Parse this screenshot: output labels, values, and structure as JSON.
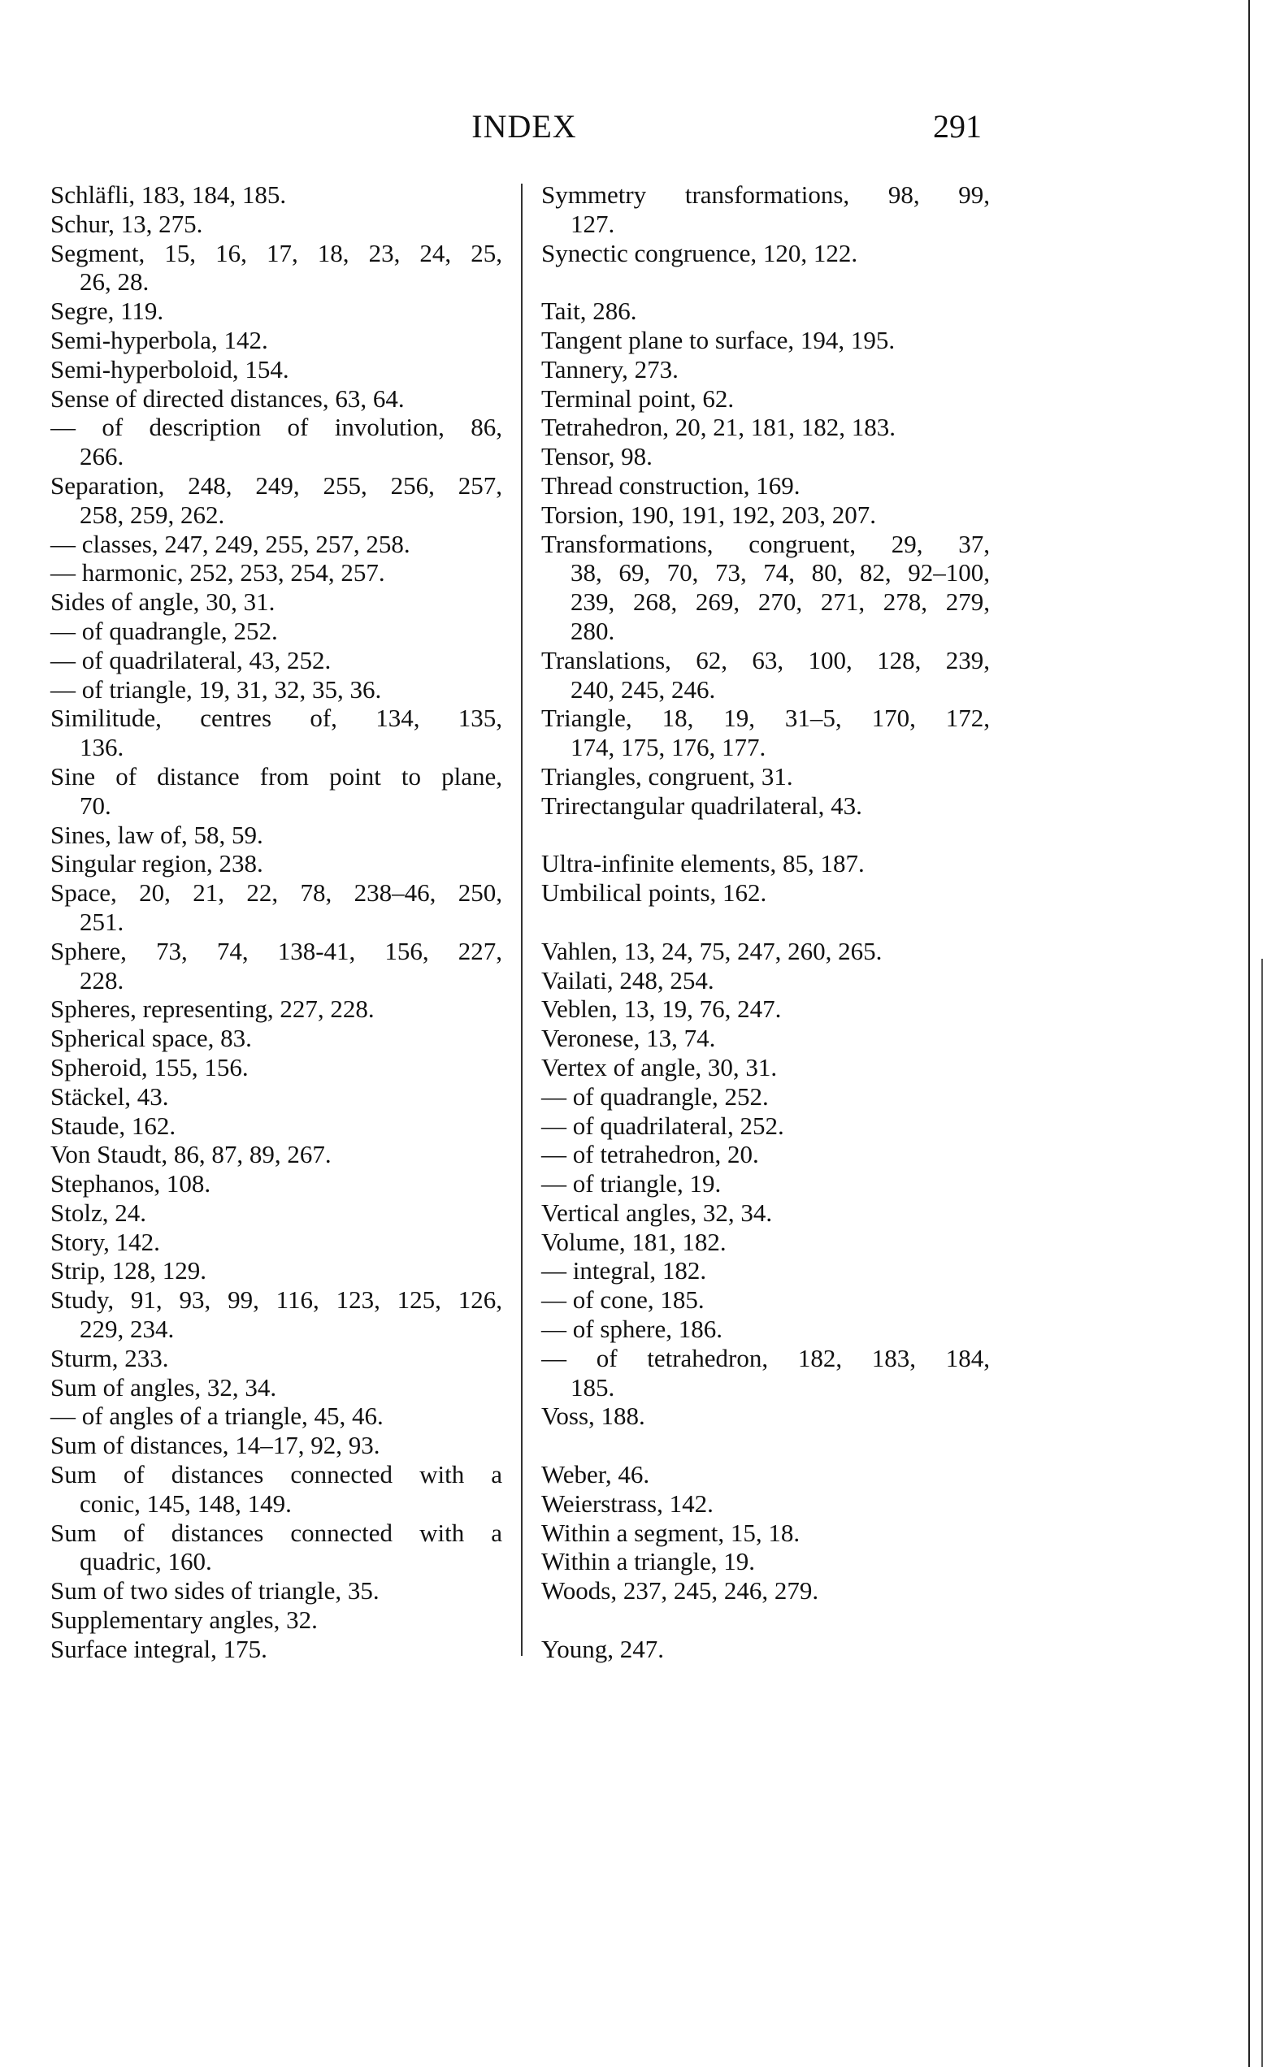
{
  "header": {
    "title": "INDEX",
    "page_number": "291"
  },
  "left_column": [
    {
      "text": "Schläfli, 183, 184, 185."
    },
    {
      "text": "Schur, 13, 275."
    },
    {
      "text": "Segment, 15, 16, 17, 18, 23, 24, 25,",
      "cont": "26, 28."
    },
    {
      "text": "Segre, 119."
    },
    {
      "text": "Semi-hyperbola, 142."
    },
    {
      "text": "Semi-hyperboloid, 154."
    },
    {
      "text": "Sense of directed distances, 63, 64."
    },
    {
      "text": "— of description of involution, 86,",
      "cont": "266."
    },
    {
      "text": "Separation, 248, 249, 255, 256, 257,",
      "cont": "258, 259, 262."
    },
    {
      "text": "— classes, 247, 249, 255, 257, 258."
    },
    {
      "text": "— harmonic, 252, 253, 254, 257."
    },
    {
      "text": "Sides of angle, 30, 31."
    },
    {
      "text": "— of quadrangle, 252."
    },
    {
      "text": "— of quadrilateral, 43, 252."
    },
    {
      "text": "— of triangle, 19, 31, 32, 35, 36."
    },
    {
      "text": "Similitude, centres of, 134, 135,",
      "cont": "136."
    },
    {
      "text": "Sine of distance from point to plane,",
      "cont": "70."
    },
    {
      "text": "Sines, law of, 58, 59."
    },
    {
      "text": "Singular region, 238."
    },
    {
      "text": "Space, 20, 21, 22, 78, 238–46, 250,",
      "cont": "251."
    },
    {
      "text": "Sphere, 73, 74, 138-41, 156, 227,",
      "cont": "228."
    },
    {
      "text": "Spheres, representing, 227, 228."
    },
    {
      "text": "Spherical space, 83."
    },
    {
      "text": "Spheroid, 155, 156."
    },
    {
      "text": "Stäckel, 43."
    },
    {
      "text": "Staude, 162."
    },
    {
      "text": "Von Staudt, 86, 87, 89, 267."
    },
    {
      "text": "Stephanos, 108."
    },
    {
      "text": "Stolz, 24."
    },
    {
      "text": "Story, 142."
    },
    {
      "text": "Strip, 128, 129."
    },
    {
      "text": "Study, 91, 93, 99, 116, 123, 125, 126,",
      "cont": "229, 234."
    },
    {
      "text": "Sturm, 233."
    },
    {
      "text": "Sum of angles, 32, 34."
    },
    {
      "text": "— of angles of a triangle, 45, 46."
    },
    {
      "text": "Sum of distances, 14–17, 92, 93."
    },
    {
      "text": "Sum of distances connected with a",
      "cont": "conic, 145, 148, 149."
    },
    {
      "text": "Sum of distances connected with a",
      "cont": "quadric, 160."
    },
    {
      "text": "Sum of two sides of triangle, 35."
    },
    {
      "text": "Supplementary angles, 32."
    },
    {
      "text": "Surface integral, 175."
    }
  ],
  "right_column": [
    {
      "text": "Symmetry transformations, 98, 99,",
      "cont": "127."
    },
    {
      "text": "Synectic congruence, 120, 122."
    },
    {
      "blank": true
    },
    {
      "text": "Tait, 286."
    },
    {
      "text": "Tangent plane to surface, 194, 195."
    },
    {
      "text": "Tannery, 273."
    },
    {
      "text": "Terminal point, 62."
    },
    {
      "text": "Tetrahedron, 20, 21, 181, 182, 183."
    },
    {
      "text": "Tensor, 98."
    },
    {
      "text": "Thread construction, 169."
    },
    {
      "text": "Torsion, 190, 191, 192, 203, 207."
    },
    {
      "text": "Transformations, congruent, 29, 37,",
      "cont": "38, 69, 70, 73, 74, 80, 82, 92–100,",
      "cont2": "239, 268, 269, 270, 271, 278, 279,",
      "cont3": "280."
    },
    {
      "text": "Translations, 62, 63, 100, 128, 239,",
      "cont": "240, 245, 246."
    },
    {
      "text": "Triangle, 18, 19, 31–5, 170, 172,",
      "cont": "174, 175, 176, 177."
    },
    {
      "text": "Triangles, congruent, 31."
    },
    {
      "text": "Trirectangular quadrilateral, 43."
    },
    {
      "blank": true
    },
    {
      "text": "Ultra-infinite elements, 85, 187."
    },
    {
      "text": "Umbilical points, 162."
    },
    {
      "blank": true
    },
    {
      "text": "Vahlen, 13, 24, 75, 247, 260, 265."
    },
    {
      "text": "Vailati, 248, 254."
    },
    {
      "text": "Veblen, 13, 19, 76, 247."
    },
    {
      "text": "Veronese, 13, 74."
    },
    {
      "text": "Vertex of angle, 30, 31."
    },
    {
      "text": "— of quadrangle, 252."
    },
    {
      "text": "— of quadrilateral, 252."
    },
    {
      "text": "— of tetrahedron, 20."
    },
    {
      "text": "— of triangle, 19."
    },
    {
      "text": "Vertical angles, 32, 34."
    },
    {
      "text": "Volume, 181, 182."
    },
    {
      "text": "— integral, 182."
    },
    {
      "text": "— of cone, 185."
    },
    {
      "text": "— of sphere, 186."
    },
    {
      "text": "— of tetrahedron, 182, 183, 184,",
      "cont": "185."
    },
    {
      "text": "Voss, 188."
    },
    {
      "blank": true
    },
    {
      "text": "Weber, 46."
    },
    {
      "text": "Weierstrass, 142."
    },
    {
      "text": "Within a segment, 15, 18."
    },
    {
      "text": "Within a triangle, 19."
    },
    {
      "text": "Woods, 237, 245, 246, 279."
    },
    {
      "blank": true
    },
    {
      "text": "Young, 247."
    }
  ]
}
